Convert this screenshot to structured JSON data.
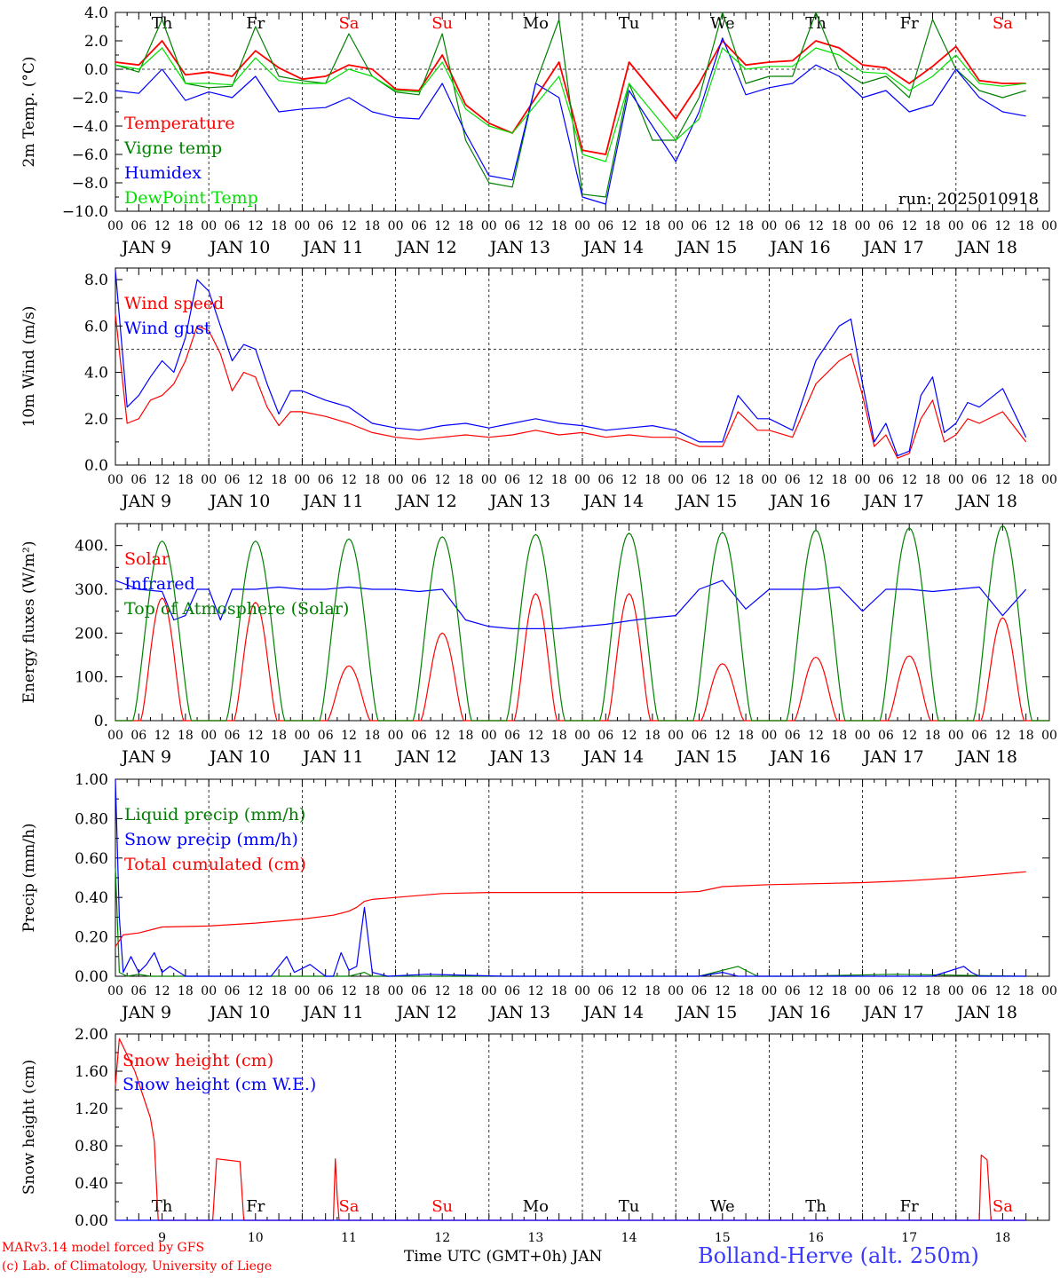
{
  "footer": {
    "model": "MARv3.14 model forced by GFS",
    "credit": "(c) Lab. of Climatology, University of Liege",
    "xaxis_title": "Time UTC (GMT+0h) JAN",
    "station": "Bolland-Herve (alt. 250m)"
  },
  "colors": {
    "red": "#ff0000",
    "green": "#008000",
    "blue": "#0000ff",
    "lightgreen": "#00e000"
  },
  "hour_ticks": [
    "00",
    "06",
    "12",
    "18"
  ],
  "day_labels": [
    "JAN  9",
    "JAN 10",
    "JAN 11",
    "JAN 12",
    "JAN 13",
    "JAN 14",
    "JAN 15",
    "JAN 16",
    "JAN 17",
    "JAN 18"
  ],
  "weekdays": [
    {
      "label": "Th",
      "weekend": false
    },
    {
      "label": "Fr",
      "weekend": false
    },
    {
      "label": "Sa",
      "weekend": true
    },
    {
      "label": "Su",
      "weekend": true
    },
    {
      "label": "Mo",
      "weekend": false
    },
    {
      "label": "Tu",
      "weekend": false
    },
    {
      "label": "We",
      "weekend": false
    },
    {
      "label": "Th",
      "weekend": false
    },
    {
      "label": "Fr",
      "weekend": false
    },
    {
      "label": "Sa",
      "weekend": true
    }
  ],
  "day_numbers": [
    "9",
    "10",
    "11",
    "12",
    "13",
    "14",
    "15",
    "16",
    "17",
    "18"
  ],
  "chart_data": [
    {
      "type": "line",
      "ylabel": "2m Temp. (°C)",
      "ylim": [
        -10,
        4
      ],
      "yticks": [
        "4.0",
        "2.0",
        "0.0",
        "−2.0",
        "−4.0",
        "−6.0",
        "−8.0",
        "−10.0"
      ],
      "ytick_values": [
        4,
        2,
        0,
        -2,
        -4,
        -6,
        -8,
        -10
      ],
      "ref_line": 0,
      "annotation": "run: 2025010918",
      "series": [
        {
          "name": "Temperature",
          "color": "#ff0000",
          "x_hours": [
            0,
            6,
            12,
            18,
            24,
            30,
            36,
            42,
            48,
            54,
            60,
            66,
            72,
            78,
            84,
            90,
            96,
            102,
            108,
            114,
            120,
            126,
            132,
            138,
            144,
            150,
            156,
            162,
            168,
            174,
            180,
            186,
            192,
            198,
            204,
            210,
            216,
            222,
            228,
            234
          ],
          "values": [
            0.5,
            0.3,
            2.0,
            -0.4,
            -0.2,
            -0.5,
            1.3,
            0.1,
            -0.7,
            -0.5,
            0.3,
            0.0,
            -1.4,
            -1.5,
            1.0,
            -2.5,
            -3.8,
            -4.5,
            -2.0,
            0.5,
            -5.7,
            -6.0,
            0.5,
            -1.5,
            -3.5,
            -1.0,
            2.0,
            0.3,
            0.5,
            0.6,
            2.0,
            1.5,
            0.3,
            0.1,
            -1.0,
            0.2,
            1.6,
            -0.8,
            -1.0,
            -1.0
          ]
        },
        {
          "name": "Vigne temp",
          "color": "#008000",
          "x_hours": [
            0,
            6,
            12,
            18,
            24,
            30,
            36,
            42,
            48,
            54,
            60,
            66,
            72,
            78,
            84,
            90,
            96,
            102,
            108,
            114,
            120,
            126,
            132,
            138,
            144,
            150,
            156,
            162,
            168,
            174,
            180,
            186,
            192,
            198,
            204,
            210,
            216,
            222,
            228,
            234
          ],
          "values": [
            0.3,
            -0.2,
            3.5,
            -1.0,
            -1.3,
            -1.2,
            3.0,
            -0.5,
            -0.8,
            -1.0,
            2.5,
            -0.5,
            -1.6,
            -1.8,
            2.5,
            -5.0,
            -8.0,
            -8.3,
            -1.0,
            3.5,
            -8.8,
            -9.0,
            -1.0,
            -5.0,
            -5.0,
            -2.0,
            4.0,
            -1.0,
            -0.5,
            -0.5,
            4.0,
            0.0,
            -1.0,
            -0.5,
            -2.0,
            3.5,
            0.0,
            -1.5,
            -2.0,
            -1.5
          ]
        },
        {
          "name": "Humidex",
          "color": "#0000ff",
          "x_hours": [
            0,
            6,
            12,
            18,
            24,
            30,
            36,
            42,
            48,
            54,
            60,
            66,
            72,
            78,
            84,
            90,
            96,
            102,
            108,
            114,
            120,
            126,
            132,
            138,
            144,
            150,
            156,
            162,
            168,
            174,
            180,
            186,
            192,
            198,
            204,
            210,
            216,
            222,
            228,
            234
          ],
          "values": [
            -1.5,
            -1.7,
            0.0,
            -2.2,
            -1.6,
            -2.0,
            -0.5,
            -3.0,
            -2.8,
            -2.7,
            -2.0,
            -3.0,
            -3.4,
            -3.5,
            -1.0,
            -4.5,
            -7.5,
            -7.8,
            -1.0,
            -2.0,
            -9.0,
            -9.5,
            -1.5,
            -4.0,
            -6.5,
            -3.0,
            2.2,
            -1.8,
            -1.3,
            -1.0,
            0.3,
            -0.5,
            -2.0,
            -1.5,
            -3.0,
            -2.5,
            0.0,
            -2.0,
            -3.0,
            -3.3
          ]
        },
        {
          "name": "DewPoint Temp",
          "color": "#00e000",
          "x_hours": [
            0,
            6,
            12,
            18,
            24,
            30,
            36,
            42,
            48,
            54,
            60,
            66,
            72,
            78,
            84,
            90,
            96,
            102,
            108,
            114,
            120,
            126,
            132,
            138,
            144,
            150,
            156,
            162,
            168,
            174,
            180,
            186,
            192,
            198,
            204,
            210,
            216,
            222,
            228,
            234
          ],
          "values": [
            0.3,
            0.0,
            1.5,
            -1.0,
            -1.0,
            -1.1,
            0.8,
            -0.8,
            -1.0,
            -1.0,
            0.0,
            -0.5,
            -1.5,
            -1.6,
            0.5,
            -2.8,
            -4.0,
            -4.5,
            -2.5,
            -0.5,
            -6.0,
            -6.5,
            -1.0,
            -3.0,
            -5.0,
            -3.5,
            1.5,
            0.0,
            0.2,
            0.2,
            1.5,
            1.0,
            -0.2,
            -0.3,
            -1.5,
            -0.5,
            1.0,
            -1.0,
            -1.2,
            -1.0
          ]
        }
      ]
    },
    {
      "type": "line",
      "ylabel": "10m Wind (m/s)",
      "ylim": [
        0,
        8.5
      ],
      "yticks": [
        "8.0",
        "6.0",
        "4.0",
        "2.0",
        "0.0"
      ],
      "ytick_values": [
        8,
        6,
        4,
        2,
        0
      ],
      "ref_line": 5,
      "series": [
        {
          "name": "Wind speed",
          "color": "#ff0000",
          "x_hours": [
            0,
            3,
            6,
            9,
            12,
            15,
            18,
            21,
            24,
            27,
            30,
            33,
            36,
            39,
            42,
            45,
            48,
            54,
            60,
            66,
            72,
            78,
            84,
            90,
            96,
            102,
            108,
            114,
            120,
            126,
            132,
            138,
            144,
            150,
            156,
            160,
            165,
            168,
            174,
            180,
            186,
            189,
            192,
            195,
            198,
            201,
            204,
            207,
            210,
            213,
            216,
            219,
            222,
            228,
            234
          ],
          "values": [
            6.5,
            1.8,
            2.0,
            2.8,
            3.0,
            3.5,
            4.5,
            6.0,
            5.8,
            4.8,
            3.2,
            4.0,
            3.8,
            2.5,
            1.7,
            2.3,
            2.3,
            2.1,
            1.8,
            1.4,
            1.2,
            1.1,
            1.2,
            1.3,
            1.2,
            1.3,
            1.5,
            1.3,
            1.4,
            1.2,
            1.3,
            1.2,
            1.2,
            0.8,
            0.8,
            2.3,
            1.5,
            1.5,
            1.2,
            3.5,
            4.5,
            4.8,
            3.0,
            0.8,
            1.3,
            0.3,
            0.5,
            2.0,
            2.8,
            1.0,
            1.3,
            2.0,
            1.8,
            2.3,
            1.0
          ]
        },
        {
          "name": "Wind gust",
          "color": "#0000ff",
          "x_hours": [
            0,
            3,
            6,
            9,
            12,
            15,
            18,
            21,
            24,
            27,
            30,
            33,
            36,
            39,
            42,
            45,
            48,
            54,
            60,
            66,
            72,
            78,
            84,
            90,
            96,
            102,
            108,
            114,
            120,
            126,
            132,
            138,
            144,
            150,
            156,
            160,
            165,
            168,
            174,
            180,
            186,
            189,
            192,
            195,
            198,
            201,
            204,
            207,
            210,
            213,
            216,
            219,
            222,
            228,
            234
          ],
          "values": [
            8.4,
            2.5,
            3.0,
            3.8,
            4.5,
            4.0,
            5.5,
            8.0,
            7.5,
            6.0,
            4.5,
            5.2,
            5.0,
            3.5,
            2.2,
            3.2,
            3.2,
            2.8,
            2.5,
            1.8,
            1.6,
            1.5,
            1.7,
            1.8,
            1.6,
            1.8,
            2.0,
            1.8,
            1.7,
            1.5,
            1.6,
            1.7,
            1.5,
            1.0,
            1.0,
            3.0,
            2.0,
            2.0,
            1.5,
            4.5,
            6.0,
            6.3,
            3.5,
            1.0,
            1.8,
            0.4,
            0.6,
            3.0,
            3.8,
            1.4,
            1.8,
            2.7,
            2.5,
            3.3,
            1.2
          ]
        }
      ]
    },
    {
      "type": "line",
      "ylabel": "Energy fluxes (W/m²)",
      "ylim": [
        0,
        450
      ],
      "yticks": [
        "400.",
        "300.",
        "200.",
        "100.",
        "0."
      ],
      "ytick_values": [
        400,
        300,
        200,
        100,
        0
      ],
      "series": [
        {
          "name": "Solar",
          "color": "#ff0000",
          "peaks": [
            280,
            270,
            125,
            200,
            290,
            290,
            130,
            145,
            148,
            235
          ]
        },
        {
          "name": "Infrared",
          "color": "#0000ff",
          "x_hours": [
            0,
            6,
            12,
            15,
            18,
            21,
            24,
            27,
            30,
            36,
            42,
            48,
            54,
            60,
            66,
            72,
            78,
            84,
            90,
            96,
            102,
            108,
            114,
            120,
            126,
            132,
            138,
            144,
            150,
            156,
            162,
            168,
            174,
            180,
            186,
            192,
            198,
            204,
            210,
            216,
            222,
            228,
            234
          ],
          "values": [
            320,
            300,
            295,
            230,
            240,
            300,
            300,
            230,
            300,
            300,
            305,
            300,
            300,
            305,
            300,
            300,
            295,
            300,
            230,
            215,
            210,
            210,
            210,
            215,
            220,
            228,
            235,
            240,
            300,
            320,
            255,
            300,
            300,
            300,
            305,
            250,
            300,
            300,
            295,
            300,
            305,
            240,
            300
          ]
        },
        {
          "name": "Top of Atmosphere (Solar)",
          "color": "#008000",
          "peaks": [
            410,
            410,
            415,
            420,
            425,
            428,
            430,
            435,
            440,
            445
          ]
        }
      ]
    },
    {
      "type": "line",
      "ylabel": "Precip (mm/h)",
      "ylim": [
        0,
        1
      ],
      "yticks": [
        "1.00",
        "0.80",
        "0.60",
        "0.40",
        "0.20",
        "0.00"
      ],
      "ytick_values": [
        1,
        0.8,
        0.6,
        0.4,
        0.2,
        0
      ],
      "series": [
        {
          "name": "Liquid precip (mm/h)",
          "color": "#008000",
          "x_hours": [
            0,
            1,
            3,
            6,
            9,
            12,
            60,
            64,
            66,
            70,
            150,
            156,
            160,
            165,
            175,
            200,
            234
          ],
          "values": [
            0.55,
            0.02,
            0.0,
            0.01,
            0.0,
            0.0,
            0.0,
            0.02,
            0.0,
            0.0,
            0.0,
            0.03,
            0.05,
            0.0,
            0.0,
            0.01,
            0.0
          ]
        },
        {
          "name": "Snow precip (mm/h)",
          "color": "#0000ff",
          "x_hours": [
            0,
            1,
            2,
            4,
            6,
            8,
            10,
            12,
            14,
            18,
            40,
            44,
            46,
            50,
            54,
            56,
            58,
            60,
            62,
            64,
            66,
            70,
            80,
            100,
            120,
            150,
            156,
            160,
            162,
            164,
            210,
            218,
            220,
            222,
            234
          ],
          "values": [
            1.0,
            0.3,
            0.02,
            0.1,
            0.02,
            0.06,
            0.12,
            0.02,
            0.05,
            0.0,
            0.0,
            0.1,
            0.02,
            0.06,
            0.0,
            0.0,
            0.12,
            0.03,
            0.05,
            0.35,
            0.02,
            0.0,
            0.01,
            0.0,
            0.0,
            0.0,
            0.02,
            0.0,
            0.0,
            0.0,
            0.0,
            0.05,
            0.02,
            0.0,
            0.0
          ]
        },
        {
          "name": "Total cumulated (cm)",
          "color": "#ff0000",
          "x_hours": [
            0,
            2,
            6,
            12,
            24,
            36,
            48,
            56,
            58,
            60,
            62,
            64,
            66,
            72,
            84,
            96,
            120,
            144,
            150,
            156,
            162,
            168,
            180,
            192,
            204,
            216,
            222,
            228,
            234
          ],
          "values": [
            0.15,
            0.21,
            0.22,
            0.25,
            0.255,
            0.27,
            0.29,
            0.31,
            0.32,
            0.33,
            0.35,
            0.38,
            0.39,
            0.4,
            0.42,
            0.425,
            0.425,
            0.425,
            0.43,
            0.455,
            0.46,
            0.465,
            0.47,
            0.475,
            0.485,
            0.5,
            0.51,
            0.52,
            0.53
          ]
        }
      ]
    },
    {
      "type": "line",
      "ylabel": "Snow height (cm)",
      "ylim": [
        0,
        2
      ],
      "yticks": [
        "2.00",
        "1.60",
        "1.20",
        "0.80",
        "0.40",
        "0.00"
      ],
      "ytick_values": [
        2,
        1.6,
        1.2,
        0.8,
        0.4,
        0
      ],
      "series": [
        {
          "name": "Snow height (cm)",
          "color": "#ff0000",
          "x_hours": [
            0,
            1,
            5,
            9,
            10,
            11,
            11.5,
            25,
            26,
            32,
            33,
            34,
            56,
            56.5,
            57,
            57.5,
            222,
            222.5,
            224,
            225,
            225.5,
            234
          ],
          "values": [
            1.45,
            1.95,
            1.6,
            1.1,
            0.85,
            0.0,
            0.0,
            0.0,
            0.66,
            0.63,
            0.0,
            0.0,
            0.0,
            0.66,
            0.25,
            0.0,
            0.0,
            0.7,
            0.65,
            0.0,
            0.0,
            0.0
          ]
        },
        {
          "name": "Snow height (cm W.E.)",
          "color": "#0000ff",
          "x_hours": [
            0,
            234
          ],
          "values": [
            0.0,
            0.0
          ]
        }
      ]
    }
  ]
}
